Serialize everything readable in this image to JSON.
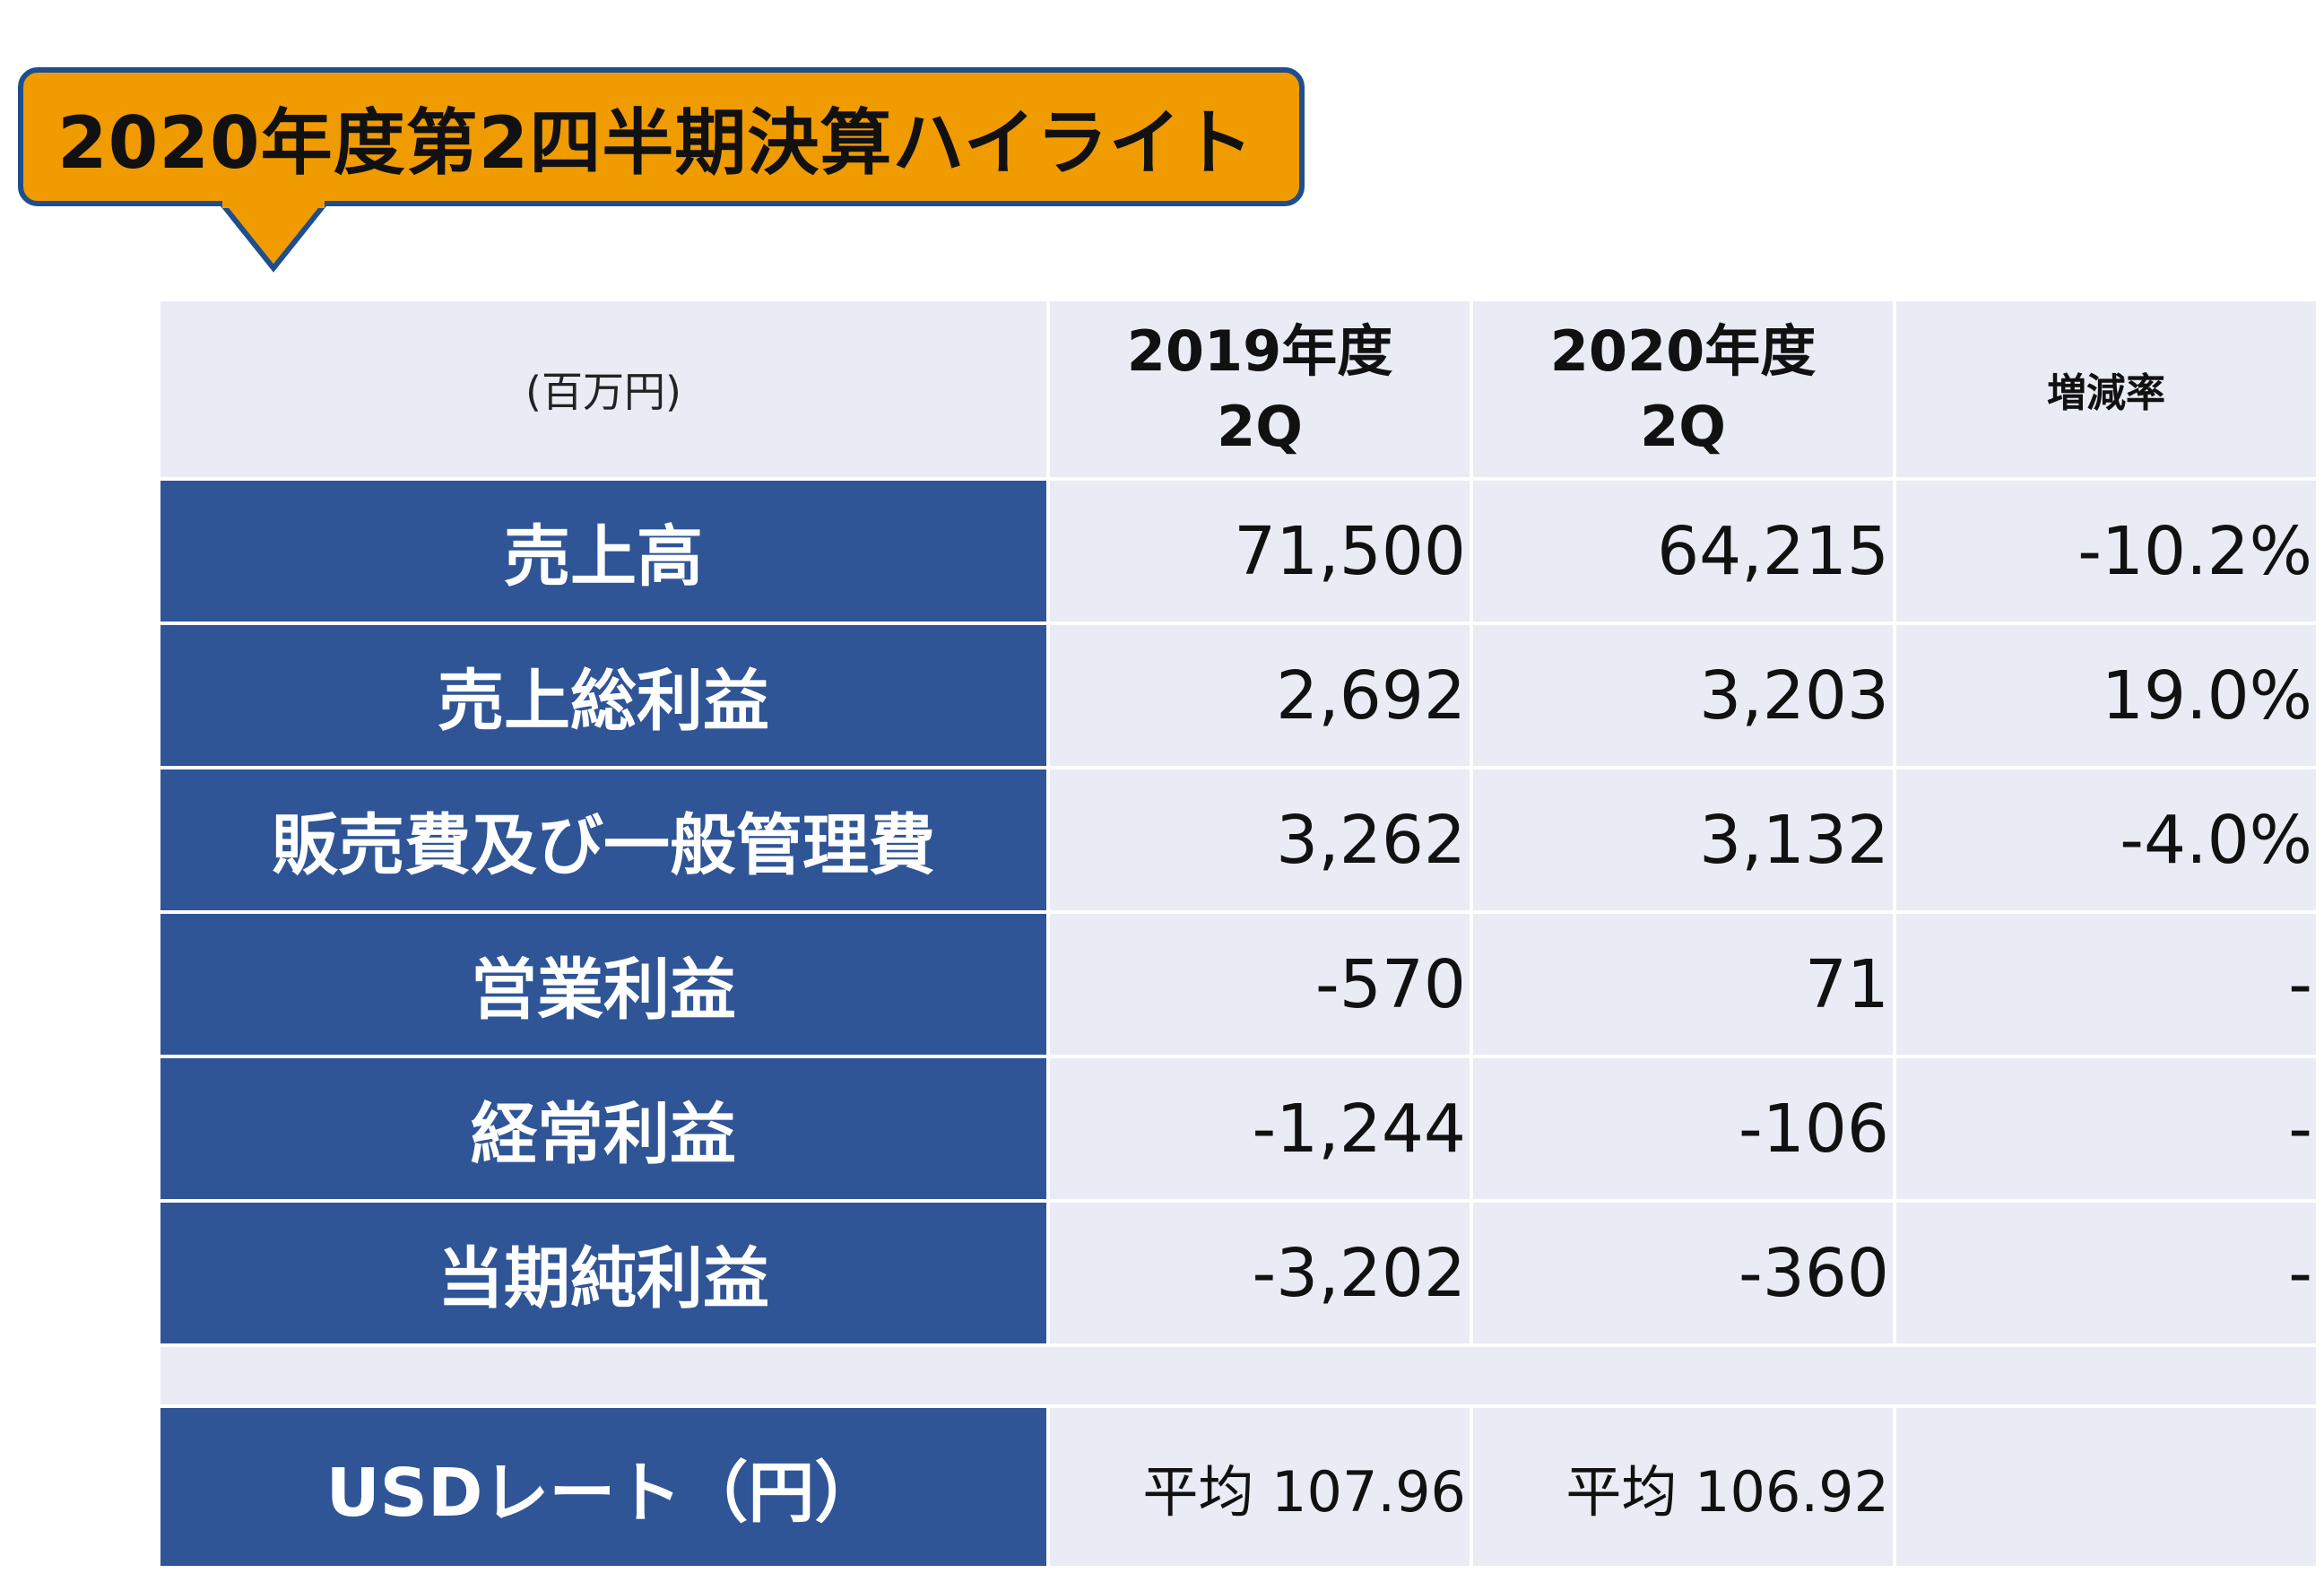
{
  "title": "2020年度第2四半期決算ハイライト",
  "colors": {
    "callout_fill": "#F09B00",
    "callout_border": "#1F4E8C",
    "label_fill": "#2F5597",
    "cell_fill": "#E9EBF5"
  },
  "table": {
    "unit_label": "(百万円)",
    "columns": [
      {
        "line1": "2019年度",
        "line2": "2Q"
      },
      {
        "line1": "2020年度",
        "line2": "2Q"
      }
    ],
    "rate_header": "増減率",
    "rows": [
      {
        "label": "売上高",
        "v2019": "71,500",
        "v2020": "64,215",
        "rate": "-10.2%"
      },
      {
        "label": "売上総利益",
        "v2019": "2,692",
        "v2020": "3,203",
        "rate": "19.0%"
      },
      {
        "label": "販売費及び一般管理費",
        "v2019": "3,262",
        "v2020": "3,132",
        "rate": "-4.0%"
      },
      {
        "label": "営業利益",
        "v2019": "-570",
        "v2020": "71",
        "rate": "-"
      },
      {
        "label": "経常利益",
        "v2019": "-1,244",
        "v2020": "-106",
        "rate": "-"
      },
      {
        "label": "当期純利益",
        "v2019": "-3,202",
        "v2020": "-360",
        "rate": "-"
      }
    ],
    "usd": {
      "label": "USDレート（円）",
      "v2019": "平均 107.96",
      "v2020": "平均 106.92"
    }
  }
}
